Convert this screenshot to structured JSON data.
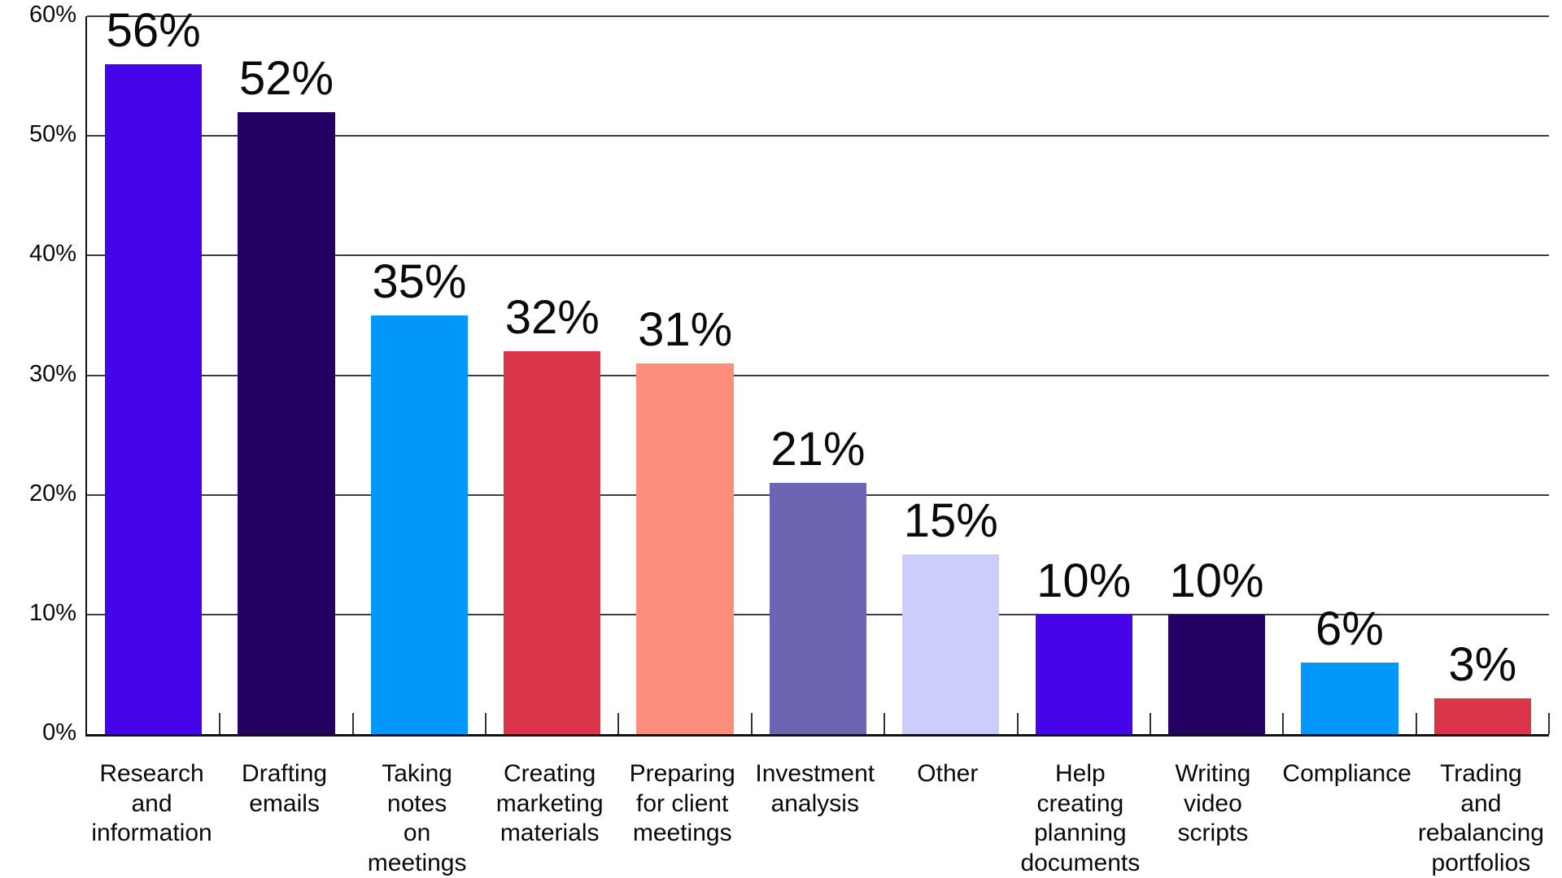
{
  "chart_data": {
    "type": "bar",
    "title": "",
    "xlabel": "",
    "ylabel": "",
    "ylim": [
      0,
      60
    ],
    "ytick_step": 10,
    "grid": true,
    "legend": false,
    "categories": [
      "Research\nand\ninformation",
      "Drafting\nemails",
      "Taking\nnotes\non\nmeetings",
      "Creating\nmarketing\nmaterials",
      "Preparing\nfor client\nmeetings",
      "Investment\nanalysis",
      "Other",
      "Help\ncreating\nplanning\ndocuments",
      "Writing\nvideo\nscripts",
      "Compliance",
      "Trading\nand\nrebalancing\nportfolios"
    ],
    "values": [
      56,
      52,
      35,
      32,
      31,
      21,
      15,
      10,
      10,
      6,
      3
    ],
    "value_labels": [
      "56%",
      "52%",
      "35%",
      "32%",
      "31%",
      "21%",
      "15%",
      "10%",
      "10%",
      "6%",
      "3%"
    ],
    "bar_colors": [
      "#4504E9",
      "#250063",
      "#0397FA",
      "#DA3449",
      "#FD8D7D",
      "#6C65B1",
      "#CDCDFB",
      "#4504E9",
      "#250063",
      "#0397FA",
      "#DA3449"
    ],
    "ytick_labels": [
      "0%",
      "10%",
      "20%",
      "30%",
      "40%",
      "50%",
      "60%"
    ]
  },
  "colors": {
    "gridline": "#3d3d3d",
    "axis": "#111111",
    "text": "#0a0a0a",
    "background": "#ffffff"
  }
}
